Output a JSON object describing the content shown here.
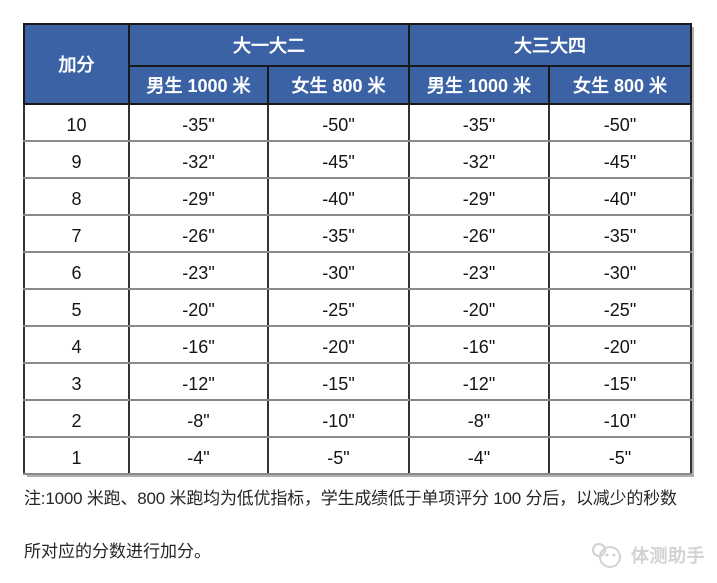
{
  "table": {
    "corner_header": "加分",
    "group_headers": [
      "大一大二",
      "大三大四"
    ],
    "sub_headers": [
      "男生 1000 米",
      "女生 800 米",
      "男生 1000 米",
      "女生 800 米"
    ],
    "rows": [
      [
        "10",
        "-35\"",
        "-50\"",
        "-35\"",
        "-50\""
      ],
      [
        "9",
        "-32\"",
        "-45\"",
        "-32\"",
        "-45\""
      ],
      [
        "8",
        "-29\"",
        "-40\"",
        "-29\"",
        "-40\""
      ],
      [
        "7",
        "-26\"",
        "-35\"",
        "-26\"",
        "-35\""
      ],
      [
        "6",
        "-23\"",
        "-30\"",
        "-23\"",
        "-30\""
      ],
      [
        "5",
        "-20\"",
        "-25\"",
        "-20\"",
        "-25\""
      ],
      [
        "4",
        "-16\"",
        "-20\"",
        "-16\"",
        "-20\""
      ],
      [
        "3",
        "-12\"",
        "-15\"",
        "-12\"",
        "-15\""
      ],
      [
        "2",
        "-8\"",
        "-10\"",
        "-8\"",
        "-10\""
      ],
      [
        "1",
        "-4\"",
        "-5\"",
        "-4\"",
        "-5\""
      ]
    ]
  },
  "note": {
    "line1": "注:1000 米跑、800 米跑均为低优指标，学生成绩低于单项评分 100 分后，以减少的秒数",
    "line2": "所对应的分数进行加分。"
  },
  "watermark": {
    "text": "体测助手"
  },
  "colors": {
    "header_bg": "#3a62a4",
    "header_text": "#ffffff"
  }
}
